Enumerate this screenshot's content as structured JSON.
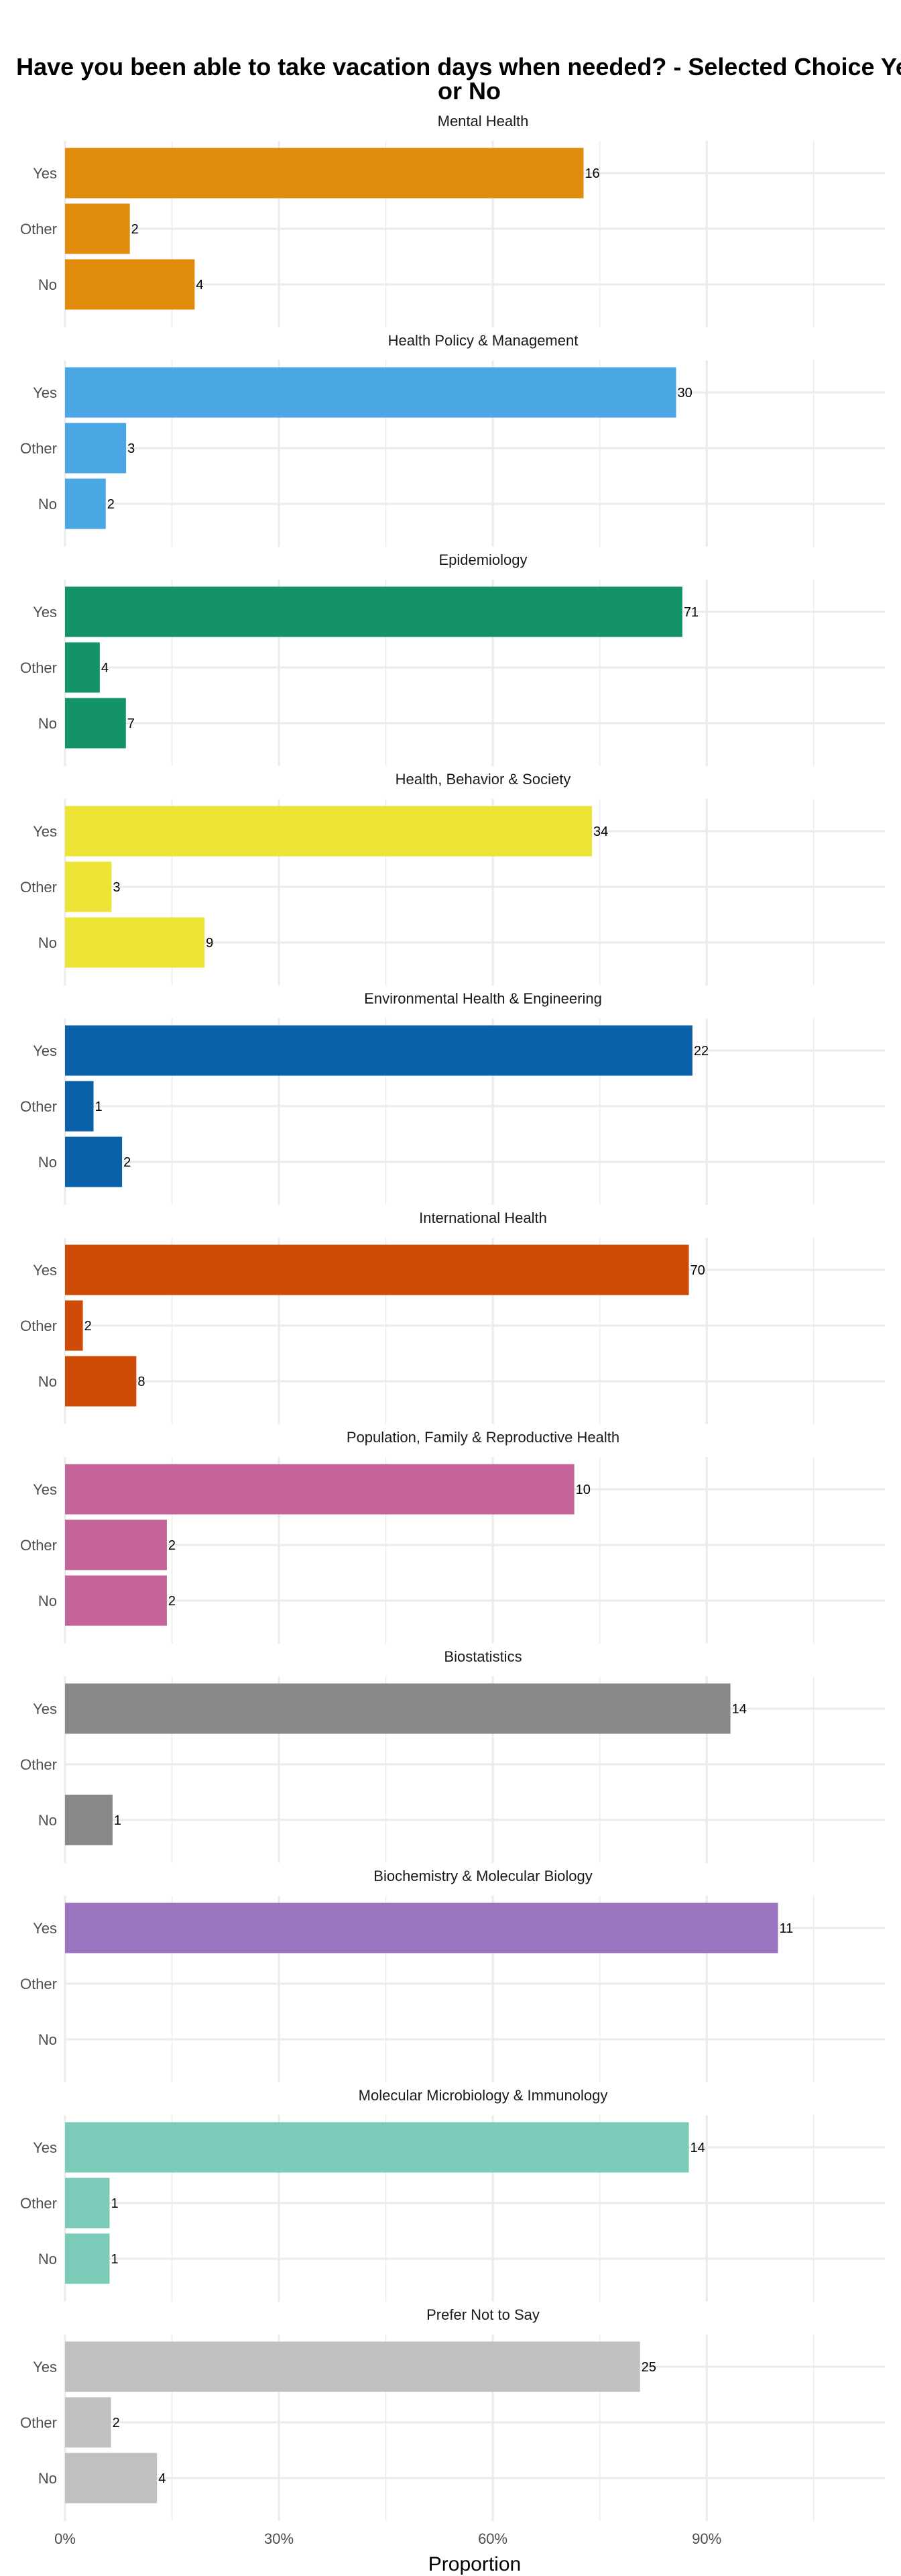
{
  "chart_data": {
    "type": "bar",
    "orientation": "horizontal",
    "title": "Have you been able to take vacation days when needed? - Selected Choice Yes or No",
    "xlabel": "Proportion",
    "ylabel": "",
    "xlim": [
      0,
      1.15
    ],
    "x_ticks": [
      0,
      0.3,
      0.6,
      0.9
    ],
    "x_tick_labels": [
      "0%",
      "30%",
      "60%",
      "90%"
    ],
    "grid": true,
    "categories": [
      "Yes",
      "Other",
      "No"
    ],
    "facets": [
      {
        "name": "Mental Health",
        "color": "#E08B0B",
        "counts": [
          16,
          2,
          4
        ]
      },
      {
        "name": "Health Policy & Management",
        "color": "#4BA6E4",
        "counts": [
          30,
          3,
          2
        ]
      },
      {
        "name": "Epidemiology",
        "color": "#14936A",
        "counts": [
          71,
          4,
          7
        ]
      },
      {
        "name": "Health, Behavior & Society",
        "color": "#EDE334",
        "counts": [
          34,
          3,
          9
        ]
      },
      {
        "name": "Environmental Health & Engineering",
        "color": "#0B61A7",
        "counts": [
          22,
          1,
          2
        ]
      },
      {
        "name": "International Health",
        "color": "#CD4A07",
        "counts": [
          70,
          2,
          8
        ]
      },
      {
        "name": "Population, Family & Reproductive Health",
        "color": "#C46498",
        "counts": [
          10,
          2,
          2
        ]
      },
      {
        "name": "Biostatistics",
        "color": "#888888",
        "counts": [
          14,
          null,
          1
        ]
      },
      {
        "name": "Biochemistry & Molecular Biology",
        "color": "#9C75C0",
        "counts": [
          11,
          null,
          null
        ]
      },
      {
        "name": "Molecular Microbiology & Immunology",
        "color": "#7BCBB8",
        "counts": [
          14,
          1,
          1
        ]
      },
      {
        "name": "Prefer Not to Say",
        "color": "#C0C0C0",
        "counts": [
          25,
          2,
          4
        ]
      }
    ]
  }
}
